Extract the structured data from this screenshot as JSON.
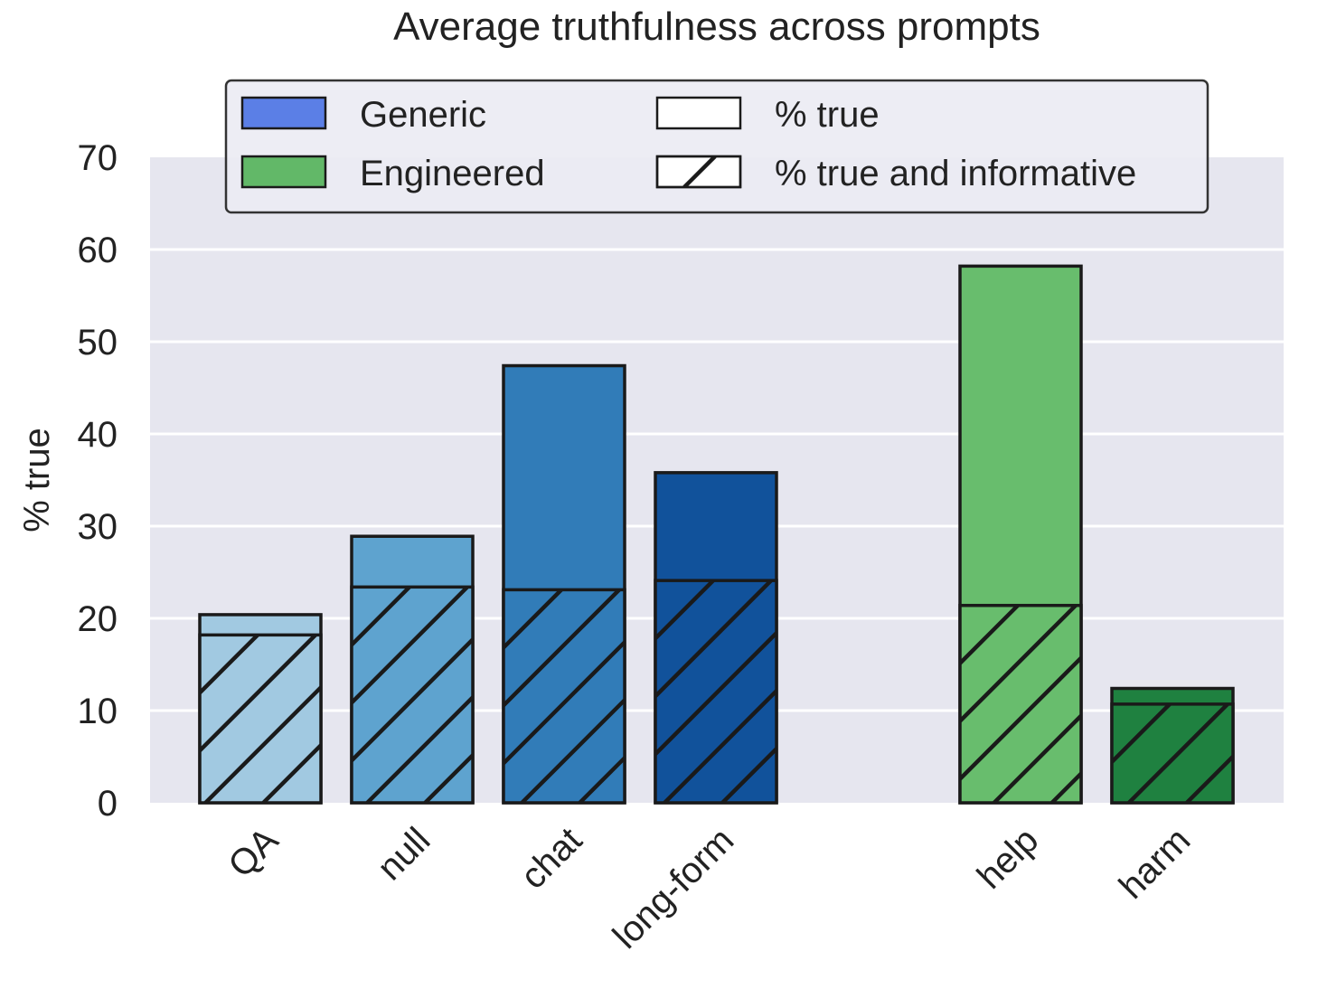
{
  "chart_data": {
    "type": "bar",
    "title": "Average truthfulness across prompts",
    "ylabel": "% true",
    "xlabel": "",
    "ylim": [
      0,
      70
    ],
    "yticks": [
      0,
      10,
      20,
      30,
      40,
      50,
      60,
      70
    ],
    "grid": true,
    "legend_position": "top",
    "categories": [
      "QA",
      "null",
      "chat",
      "long-form",
      "help",
      "harm"
    ],
    "groups": [
      "Generic",
      "Generic",
      "Generic",
      "Generic",
      "Engineered",
      "Engineered"
    ],
    "bar_colors": [
      "#a1c9e1",
      "#5ea3cf",
      "#317cb8",
      "#11529b",
      "#68bd6d",
      "#1f8140"
    ],
    "series": [
      {
        "name": "% true",
        "values": [
          20.4,
          28.9,
          47.4,
          35.8,
          58.2,
          12.4
        ]
      },
      {
        "name": "% true and informative",
        "values": [
          18.2,
          23.4,
          23.1,
          24.1,
          21.4,
          10.7
        ]
      }
    ],
    "legend": [
      {
        "label": "Generic",
        "kind": "color",
        "color": "#5b7fe6"
      },
      {
        "label": "Engineered",
        "kind": "color",
        "color": "#62b868"
      },
      {
        "label": "% true",
        "kind": "plain"
      },
      {
        "label": "% true and informative",
        "kind": "hatched"
      }
    ],
    "colors": {
      "background": "#e6e6ef",
      "grid": "#ffffff",
      "edge": "#1a1a1a",
      "text": "#222222"
    }
  }
}
